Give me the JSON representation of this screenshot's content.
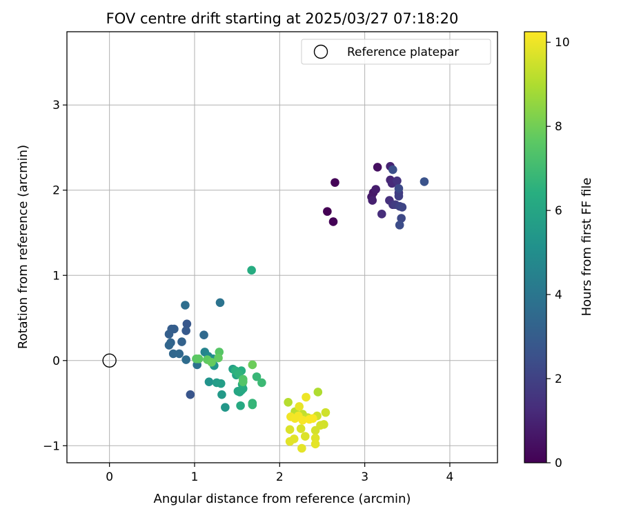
{
  "chart_data": {
    "type": "scatter",
    "title": "FOV centre drift starting at 2025/03/27 07:18:20",
    "xlabel": "Angular distance from reference (arcmin)",
    "ylabel": "Rotation from reference (arcmin)",
    "xlim": [
      -0.5,
      4.56
    ],
    "ylim": [
      -1.2,
      3.86
    ],
    "x_ticks": [
      0,
      1,
      2,
      3,
      4
    ],
    "y_ticks": [
      -1,
      0,
      1,
      2,
      3
    ],
    "grid": true,
    "legend": {
      "position": "top-right",
      "entries": [
        "Reference platepar"
      ]
    },
    "reference_point": {
      "label": "Reference platepar",
      "x": 0,
      "y": 0
    },
    "colorbar": {
      "label": "Hours from first FF file",
      "min": 0,
      "max": 10.25,
      "ticks": [
        0,
        2,
        4,
        6,
        8,
        10
      ],
      "colormap": "viridis"
    },
    "points": [
      {
        "x": 2.56,
        "y": 1.75,
        "c": 0.0
      },
      {
        "x": 2.63,
        "y": 1.63,
        "c": 0.05
      },
      {
        "x": 2.65,
        "y": 2.09,
        "c": 0.1
      },
      {
        "x": 3.15,
        "y": 2.27,
        "c": 0.4
      },
      {
        "x": 3.1,
        "y": 1.97,
        "c": 0.6
      },
      {
        "x": 3.08,
        "y": 1.92,
        "c": 0.7
      },
      {
        "x": 3.13,
        "y": 2.01,
        "c": 0.8
      },
      {
        "x": 3.09,
        "y": 1.88,
        "c": 0.9
      },
      {
        "x": 3.3,
        "y": 2.28,
        "c": 1.0
      },
      {
        "x": 3.3,
        "y": 2.12,
        "c": 1.1
      },
      {
        "x": 3.32,
        "y": 2.08,
        "c": 1.2
      },
      {
        "x": 3.2,
        "y": 1.72,
        "c": 1.3
      },
      {
        "x": 3.29,
        "y": 1.88,
        "c": 1.4
      },
      {
        "x": 3.38,
        "y": 2.11,
        "c": 1.5
      },
      {
        "x": 3.33,
        "y": 1.83,
        "c": 1.6
      },
      {
        "x": 3.4,
        "y": 1.97,
        "c": 1.7
      },
      {
        "x": 3.36,
        "y": 1.83,
        "c": 1.8
      },
      {
        "x": 3.4,
        "y": 1.93,
        "c": 1.9
      },
      {
        "x": 3.41,
        "y": 1.81,
        "c": 2.0
      },
      {
        "x": 3.44,
        "y": 1.8,
        "c": 2.1
      },
      {
        "x": 3.43,
        "y": 1.67,
        "c": 2.2
      },
      {
        "x": 3.4,
        "y": 2.02,
        "c": 2.3
      },
      {
        "x": 3.41,
        "y": 1.59,
        "c": 2.4
      },
      {
        "x": 3.33,
        "y": 2.24,
        "c": 2.5
      },
      {
        "x": 3.7,
        "y": 2.1,
        "c": 2.6
      },
      {
        "x": 0.95,
        "y": -0.4,
        "c": 2.7
      },
      {
        "x": 0.91,
        "y": 0.43,
        "c": 2.8
      },
      {
        "x": 0.9,
        "y": 0.35,
        "c": 2.9
      },
      {
        "x": 0.73,
        "y": 0.37,
        "c": 3.0
      },
      {
        "x": 0.76,
        "y": 0.37,
        "c": 3.05
      },
      {
        "x": 0.7,
        "y": 0.31,
        "c": 3.1
      },
      {
        "x": 0.85,
        "y": 0.22,
        "c": 3.2
      },
      {
        "x": 0.72,
        "y": 0.21,
        "c": 3.3
      },
      {
        "x": 0.7,
        "y": 0.18,
        "c": 3.35
      },
      {
        "x": 0.75,
        "y": 0.08,
        "c": 3.4
      },
      {
        "x": 0.82,
        "y": 0.08,
        "c": 3.45
      },
      {
        "x": 1.11,
        "y": 0.3,
        "c": 3.5
      },
      {
        "x": 0.9,
        "y": 0.01,
        "c": 3.6
      },
      {
        "x": 0.89,
        "y": 0.65,
        "c": 3.7
      },
      {
        "x": 1.03,
        "y": -0.05,
        "c": 3.8
      },
      {
        "x": 1.3,
        "y": 0.68,
        "c": 3.9
      },
      {
        "x": 1.12,
        "y": 0.1,
        "c": 4.6
      },
      {
        "x": 1.16,
        "y": 0.05,
        "c": 4.8
      },
      {
        "x": 1.22,
        "y": 0.02,
        "c": 5.0
      },
      {
        "x": 1.17,
        "y": -0.25,
        "c": 5.2
      },
      {
        "x": 1.23,
        "y": -0.06,
        "c": 5.3
      },
      {
        "x": 1.36,
        "y": -0.55,
        "c": 5.4
      },
      {
        "x": 1.32,
        "y": -0.4,
        "c": 5.5
      },
      {
        "x": 1.26,
        "y": -0.26,
        "c": 5.6
      },
      {
        "x": 1.31,
        "y": -0.27,
        "c": 5.7
      },
      {
        "x": 1.45,
        "y": -0.1,
        "c": 5.8
      },
      {
        "x": 1.49,
        "y": -0.17,
        "c": 5.9
      },
      {
        "x": 1.51,
        "y": -0.36,
        "c": 6.0
      },
      {
        "x": 1.53,
        "y": -0.37,
        "c": 6.05
      },
      {
        "x": 1.55,
        "y": -0.35,
        "c": 6.1
      },
      {
        "x": 1.57,
        "y": -0.33,
        "c": 6.15
      },
      {
        "x": 1.54,
        "y": -0.53,
        "c": 6.2
      },
      {
        "x": 1.56,
        "y": -0.28,
        "c": 6.3
      },
      {
        "x": 1.55,
        "y": -0.12,
        "c": 6.4
      },
      {
        "x": 1.48,
        "y": -0.12,
        "c": 6.5
      },
      {
        "x": 1.52,
        "y": -0.16,
        "c": 6.6
      },
      {
        "x": 1.68,
        "y": -0.5,
        "c": 6.7
      },
      {
        "x": 1.68,
        "y": -0.52,
        "c": 6.75
      },
      {
        "x": 1.73,
        "y": -0.19,
        "c": 6.8
      },
      {
        "x": 1.79,
        "y": -0.26,
        "c": 6.9
      },
      {
        "x": 1.67,
        "y": 1.06,
        "c": 6.3
      },
      {
        "x": 1.29,
        "y": 0.1,
        "c": 7.5
      },
      {
        "x": 1.02,
        "y": 0.02,
        "c": 7.6
      },
      {
        "x": 1.05,
        "y": 0.02,
        "c": 7.65
      },
      {
        "x": 1.15,
        "y": 0.01,
        "c": 7.7
      },
      {
        "x": 1.28,
        "y": 0.03,
        "c": 7.75
      },
      {
        "x": 1.2,
        "y": -0.02,
        "c": 7.8
      },
      {
        "x": 1.57,
        "y": -0.22,
        "c": 7.4
      },
      {
        "x": 1.57,
        "y": -0.25,
        "c": 7.45
      },
      {
        "x": 1.68,
        "y": -0.05,
        "c": 7.9
      },
      {
        "x": 2.45,
        "y": -0.37,
        "c": 9.0
      },
      {
        "x": 2.1,
        "y": -0.49,
        "c": 9.1
      },
      {
        "x": 2.18,
        "y": -0.6,
        "c": 9.2
      },
      {
        "x": 2.27,
        "y": -0.63,
        "c": 9.3
      },
      {
        "x": 2.33,
        "y": -0.67,
        "c": 9.4
      },
      {
        "x": 2.54,
        "y": -0.61,
        "c": 9.5
      },
      {
        "x": 2.44,
        "y": -0.65,
        "c": 9.5
      },
      {
        "x": 2.52,
        "y": -0.75,
        "c": 9.55
      },
      {
        "x": 2.48,
        "y": -0.76,
        "c": 9.6
      },
      {
        "x": 2.42,
        "y": -0.82,
        "c": 9.6
      },
      {
        "x": 2.25,
        "y": -0.8,
        "c": 9.65
      },
      {
        "x": 2.12,
        "y": -0.81,
        "c": 9.7
      },
      {
        "x": 2.3,
        "y": -0.89,
        "c": 9.7
      },
      {
        "x": 2.42,
        "y": -0.91,
        "c": 9.75
      },
      {
        "x": 2.17,
        "y": -0.92,
        "c": 9.8
      },
      {
        "x": 2.12,
        "y": -0.95,
        "c": 9.8
      },
      {
        "x": 2.42,
        "y": -0.98,
        "c": 9.85
      },
      {
        "x": 2.26,
        "y": -1.03,
        "c": 9.85
      },
      {
        "x": 2.23,
        "y": -0.54,
        "c": 9.9
      },
      {
        "x": 2.31,
        "y": -0.43,
        "c": 10.0
      },
      {
        "x": 2.13,
        "y": -0.66,
        "c": 10.05
      },
      {
        "x": 2.18,
        "y": -0.68,
        "c": 10.1
      },
      {
        "x": 2.22,
        "y": -0.65,
        "c": 10.1
      },
      {
        "x": 2.27,
        "y": -0.7,
        "c": 10.15
      },
      {
        "x": 2.35,
        "y": -0.69,
        "c": 10.2
      },
      {
        "x": 2.39,
        "y": -0.68,
        "c": 10.2
      }
    ]
  }
}
